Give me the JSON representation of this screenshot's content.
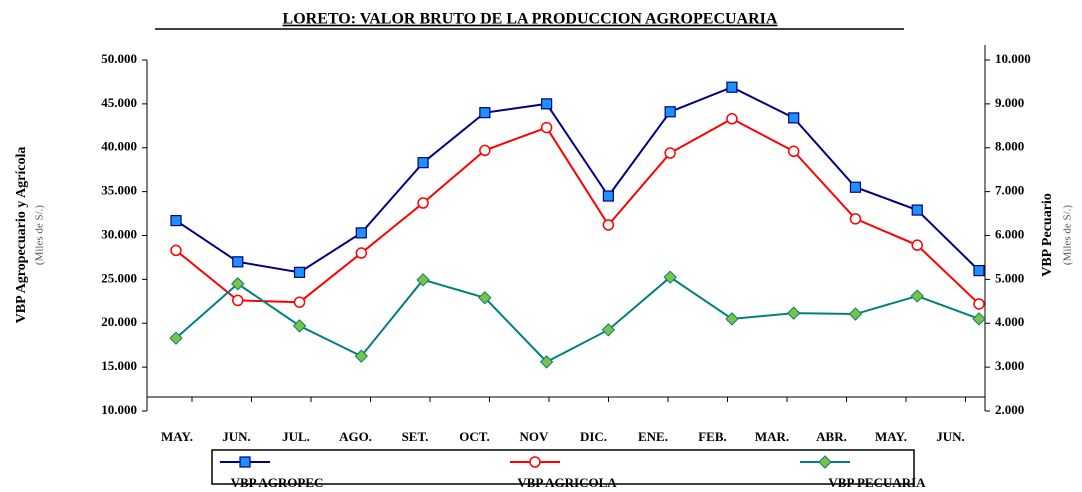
{
  "chart_data": {
    "type": "line",
    "title": "LORETO: VALOR BRUTO DE LA PRODUCCION AGROPECUARIA",
    "y_label": "VBP Agropecuario y Agrícola",
    "y_sublabel": "(Miles de S/.)",
    "y2_label": "VBP Pecuario",
    "y2_sublabel": "(Miles de S/.)",
    "categories": [
      "MAY.",
      "JUN.",
      "JUL.",
      "AGO.",
      "SET.",
      "OCT.",
      "NOV",
      "DIC.",
      "ENE.",
      "FEB.",
      "MAR.",
      "ABR.",
      "MAY.",
      "JUN."
    ],
    "series": [
      {
        "name": "VBP AGROPEC",
        "color": "#000080",
        "marker_fill": "#1e90ff",
        "marker": "square",
        "values": [
          31700,
          27000,
          25800,
          30300,
          38300,
          44000,
          45000,
          34500,
          44100,
          46900,
          43400,
          35500,
          32900,
          26000
        ]
      },
      {
        "name": "VBP AGRICOLA",
        "color": "#ff0000",
        "marker_fill": "#ffffff",
        "marker": "circle",
        "values": [
          28300,
          22600,
          22400,
          28000,
          33700,
          39700,
          42300,
          31200,
          39400,
          43300,
          39600,
          31900,
          28900,
          22200
        ]
      },
      {
        "name": "VBP PECUARIA",
        "color": "#008080",
        "marker_fill": "#7cc242",
        "marker": "diamond",
        "axis": "y2",
        "values": [
          3660,
          4900,
          3940,
          3250,
          4990,
          4580,
          3120,
          3850,
          5050,
          4100,
          4230,
          4210,
          4620,
          4100
        ]
      }
    ],
    "ylim": [
      10000,
      50000
    ],
    "yticks": [
      {
        "value": 10000,
        "label": "10.000"
      },
      {
        "value": 15000,
        "label": "15.000"
      },
      {
        "value": 20000,
        "label": "20.000"
      },
      {
        "value": 25000,
        "label": "25.000"
      },
      {
        "value": 30000,
        "label": "30.000"
      },
      {
        "value": 35000,
        "label": "35.000"
      },
      {
        "value": 40000,
        "label": "40.000"
      },
      {
        "value": 45000,
        "label": "45.000"
      },
      {
        "value": 50000,
        "label": "50.000"
      }
    ],
    "y2lim": [
      2000,
      10000
    ],
    "y2ticks": [
      {
        "value": 2000,
        "label": "2.000"
      },
      {
        "value": 3000,
        "label": "3.000"
      },
      {
        "value": 4000,
        "label": "4.000"
      },
      {
        "value": 5000,
        "label": "5.000"
      },
      {
        "value": 6000,
        "label": "6.000"
      },
      {
        "value": 7000,
        "label": "7.000"
      },
      {
        "value": 8000,
        "label": "8.000"
      },
      {
        "value": 9000,
        "label": "9.000"
      },
      {
        "value": 10000,
        "label": "10.000"
      }
    ],
    "legend": "bottom",
    "grid": false
  }
}
